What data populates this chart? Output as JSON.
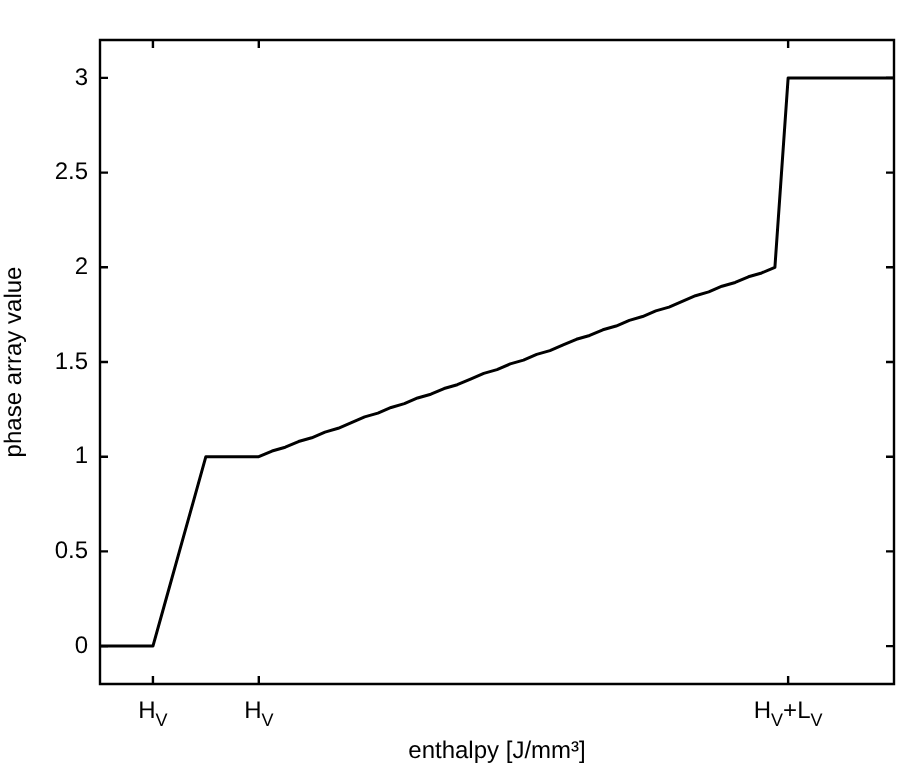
{
  "chart_data": {
    "type": "line",
    "xlabel": "enthalpy [J/mm³]",
    "ylabel": "phase array value",
    "categories": [
      null,
      null,
      null,
      null,
      "H$_{V}$",
      null,
      null,
      null,
      null,
      null,
      null,
      null,
      "H$_{V}$",
      null,
      null,
      null,
      null,
      null,
      null,
      null,
      null,
      null,
      null,
      null,
      null,
      null,
      null,
      null,
      null,
      null,
      null,
      null,
      null,
      null,
      null,
      null,
      null,
      null,
      null,
      null,
      null,
      null,
      null,
      null,
      null,
      null,
      null,
      null,
      null,
      null,
      null,
      null,
      "H$_{V}$+L$_{V}$",
      null,
      null,
      null,
      null,
      null,
      null,
      null,
      null
    ],
    "values": [
      0,
      0,
      0,
      0,
      0,
      0.25,
      0.5,
      0.75,
      1,
      1,
      1,
      1,
      1,
      1.03,
      1.05,
      1.08,
      1.1,
      1.13,
      1.15,
      1.18,
      1.21,
      1.23,
      1.26,
      1.28,
      1.31,
      1.33,
      1.36,
      1.38,
      1.41,
      1.44,
      1.46,
      1.49,
      1.51,
      1.54,
      1.56,
      1.59,
      1.62,
      1.64,
      1.67,
      1.69,
      1.72,
      1.74,
      1.77,
      1.79,
      1.82,
      1.85,
      1.87,
      1.9,
      1.92,
      1.95,
      1.97,
      2,
      3,
      3,
      3,
      3,
      3,
      3,
      3,
      3,
      3
    ],
    "color": "#000000",
    "ylim": [
      -0.2,
      3.2
    ],
    "yticks": [
      0,
      0.5,
      1,
      1.5,
      2,
      2.5,
      3
    ],
    "grid": false,
    "legend": false,
    "marker": "none",
    "line_style": "solid"
  }
}
